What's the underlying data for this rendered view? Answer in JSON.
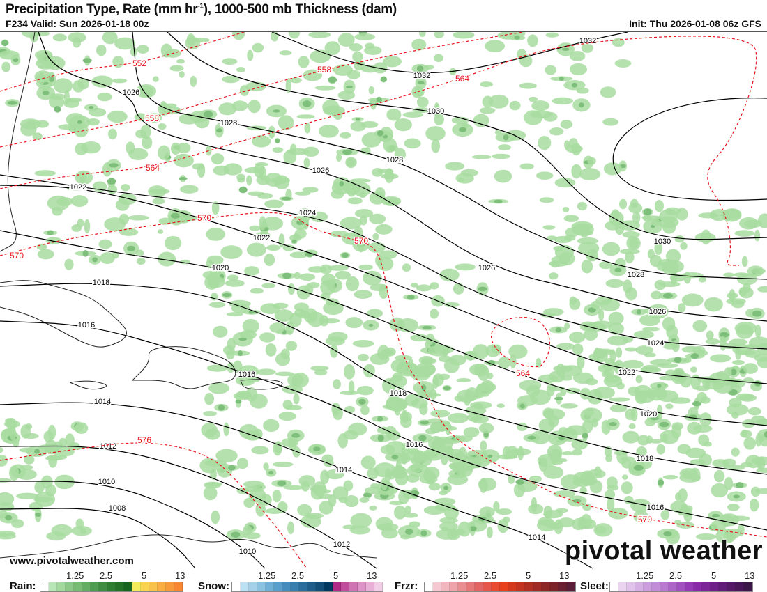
{
  "header": {
    "title_main": "Precipitation Type, Rate (mm hr",
    "title_sup": "-1",
    "title_rest": "), 1000-500 mb Thickness (dam)",
    "valid": "F234 Valid: Sun 2026-01-18 00z",
    "init": "Init: Thu 2026-01-08 06z GFS"
  },
  "map": {
    "isobar_color": "#000000",
    "thickness_color": "#e8141e",
    "precip_color": "#a8dca0",
    "isobar_labels": [
      "1032",
      "1032",
      "1030",
      "1030",
      "1028",
      "1028",
      "1028",
      "1026",
      "1026",
      "1026",
      "1026",
      "1024",
      "1024",
      "1022",
      "1022",
      "1022",
      "1020",
      "1020",
      "1018",
      "1018",
      "1018",
      "1016",
      "1016",
      "1016",
      "1016",
      "1014",
      "1014",
      "1014",
      "1012",
      "1012",
      "1010",
      "1010",
      "1008"
    ],
    "thickness_labels": [
      "552",
      "558",
      "558",
      "564",
      "564",
      "564",
      "570",
      "570",
      "570",
      "570",
      "576"
    ]
  },
  "watermark": {
    "url": "www.pivotalweather.com",
    "logo": "pivotal weather"
  },
  "legend": {
    "ticks": [
      "1.25",
      "2.5",
      "5",
      "13"
    ],
    "rain": {
      "label": "Rain:",
      "colors": [
        "#ffffff",
        "#b9e6b6",
        "#a2d89e",
        "#8cc988",
        "#78bb75",
        "#64ad62",
        "#4f9d50",
        "#3e8d40",
        "#2f7f33",
        "#237228",
        "#18651f",
        "#f4ec5a",
        "#f8d450",
        "#f9c24a",
        "#f9ad42",
        "#f99a3a",
        "#f98732"
      ]
    },
    "snow": {
      "label": "Snow:",
      "colors": [
        "#ffffff",
        "#bde0f2",
        "#a5d2ea",
        "#8bc2e0",
        "#70b0d6",
        "#5a9fcb",
        "#468dbd",
        "#387eae",
        "#2b6e9d",
        "#1f5e8b",
        "#134e78",
        "#003a60",
        "#b02a86",
        "#c04e9c",
        "#d073b2",
        "#de93c6",
        "#e8b0d6",
        "#f2cde6"
      ]
    },
    "frzr": {
      "label": "Frzr:",
      "colors": [
        "#ffffff",
        "#f6c8d2",
        "#f2b6bf",
        "#eea4aa",
        "#ea8e92",
        "#e6787a",
        "#e26564",
        "#e4574a",
        "#e84a32",
        "#e9401e",
        "#d4391e",
        "#c2341f",
        "#b02f21",
        "#9f2b24",
        "#8d2726",
        "#7c2329",
        "#6a2030",
        "#5a1e38"
      ]
    },
    "sleet": {
      "label": "Sleet:",
      "colors": [
        "#ffffff",
        "#ead4f0",
        "#e0c2ea",
        "#d6b0e4",
        "#cc9ede",
        "#c28cd8",
        "#b77ad0",
        "#ad66c8",
        "#a252c0",
        "#963ab6",
        "#8a2aa8",
        "#7c2498",
        "#6e2088",
        "#601c78",
        "#541a68",
        "#481858",
        "#3c1848"
      ]
    }
  }
}
